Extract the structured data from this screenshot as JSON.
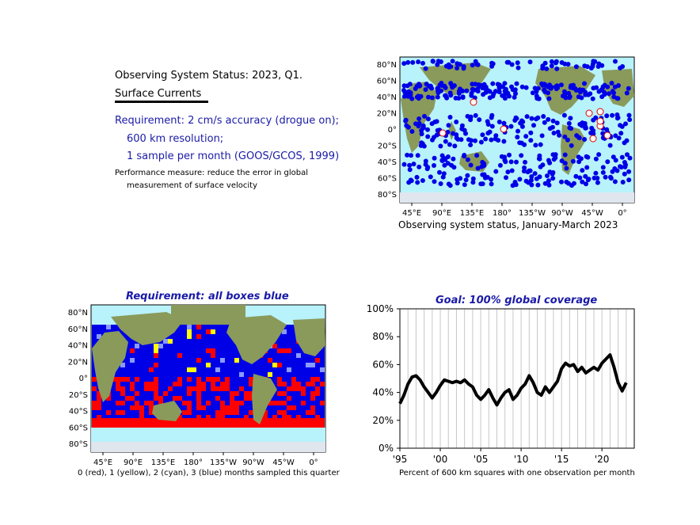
{
  "header": {
    "title": "Observing System Status: 2023, Q1.",
    "variable": "Surface Currents"
  },
  "requirement": {
    "line1": "Requirement: 2 cm/s accuracy (drogue on);",
    "line2": "600 km resolution;",
    "line3": "1 sample per month (GOOS/GCOS, 1999)"
  },
  "performance": {
    "line1": "Performance measure: reduce the error in global",
    "line2": "measurement of surface velocity"
  },
  "map_status": {
    "caption": "Observing system status, January-March 2023",
    "lat_labels": [
      "80°N",
      "60°N",
      "40°N",
      "20°N",
      "0°",
      "20°S",
      "40°S",
      "60°S",
      "80°S"
    ],
    "lon_labels": [
      "45°E",
      "90°E",
      "135°E",
      "180°",
      "135°W",
      "90°W",
      "45°W",
      "0°"
    ],
    "colors": {
      "ocean": "#b8f2fb",
      "land": "#8a9a5b",
      "obs": "#0000e6",
      "marker": "#ffffff"
    }
  },
  "map_boxes": {
    "title": "Requirement: all boxes blue",
    "caption": "0 (red), 1 (yellow), 2 (cyan), 3 (blue) months sampled this quarter",
    "lat_labels": [
      "80°N",
      "60°N",
      "40°N",
      "20°N",
      "0°",
      "20°S",
      "40°S",
      "60°S",
      "80°S"
    ],
    "lon_labels": [
      "45°E",
      "90°E",
      "135°E",
      "180°",
      "135°W",
      "90°W",
      "45°W",
      "0°"
    ],
    "colors": {
      "zero": "#ff0000",
      "one": "#ffff00",
      "two": "#8a9aff",
      "three": "#0000e6"
    }
  },
  "chart_data": {
    "type": "line",
    "title": "Goal: 100% global coverage",
    "caption": "Percent of 600 km squares with one observation per month",
    "x_tick_labels": [
      "'95",
      "'00",
      "'05",
      "'10",
      "'15",
      "'20"
    ],
    "x_ticks": [
      1995,
      2000,
      2005,
      2010,
      2015,
      2020
    ],
    "xlim": [
      1995,
      2024
    ],
    "y_tick_labels": [
      "0%",
      "20%",
      "40%",
      "60%",
      "80%",
      "100%"
    ],
    "y_ticks": [
      0,
      20,
      40,
      60,
      80,
      100
    ],
    "ylim": [
      0,
      100
    ],
    "grid": "vertical yearly",
    "series": [
      {
        "color": "#000000",
        "x": [
          1995.0,
          1995.5,
          1996.0,
          1996.5,
          1997.0,
          1997.5,
          1998.0,
          1998.5,
          1999.0,
          1999.5,
          2000.0,
          2000.5,
          2001.0,
          2001.5,
          2002.0,
          2002.5,
          2003.0,
          2003.5,
          2004.0,
          2004.5,
          2005.0,
          2005.5,
          2006.0,
          2006.5,
          2007.0,
          2007.5,
          2008.0,
          2008.5,
          2009.0,
          2009.5,
          2010.0,
          2010.5,
          2011.0,
          2011.5,
          2012.0,
          2012.5,
          2013.0,
          2013.5,
          2014.0,
          2014.5,
          2015.0,
          2015.5,
          2016.0,
          2016.5,
          2017.0,
          2017.5,
          2018.0,
          2018.5,
          2019.0,
          2019.5,
          2020.0,
          2020.5,
          2021.0,
          2021.5,
          2022.0,
          2022.5,
          2023.0
        ],
        "y": [
          32,
          38,
          46,
          51,
          52,
          49,
          44,
          40,
          36,
          40,
          45,
          49,
          48,
          47,
          48,
          47,
          49,
          46,
          44,
          38,
          35,
          38,
          42,
          36,
          31,
          36,
          40,
          42,
          35,
          38,
          43,
          46,
          52,
          47,
          40,
          38,
          44,
          40,
          44,
          48,
          57,
          61,
          59,
          60,
          55,
          58,
          54,
          56,
          58,
          56,
          61,
          64,
          67,
          58,
          47,
          41,
          47
        ]
      }
    ]
  }
}
